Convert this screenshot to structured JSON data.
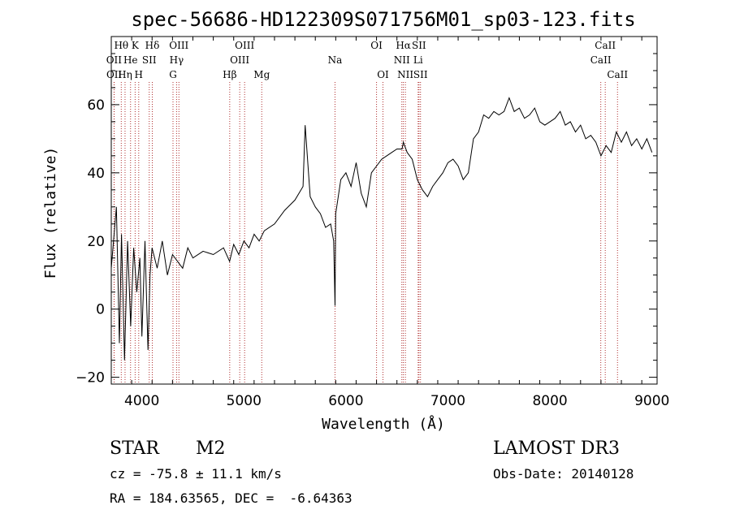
{
  "chart_data": {
    "type": "line",
    "title": "spec-56686-HD122309S071756M01_sp03-123.fits",
    "xlabel": "Wavelength (Å)",
    "ylabel": "Flux (relative)",
    "xlim": [
      3700,
      9050
    ],
    "ylim": [
      -22,
      80
    ],
    "xticks": [
      4000,
      5000,
      6000,
      7000,
      8000,
      9000
    ],
    "yticks": [
      -20,
      0,
      20,
      40,
      60
    ],
    "series": [
      {
        "name": "spectrum",
        "x": [
          3700,
          3750,
          3780,
          3800,
          3830,
          3860,
          3890,
          3920,
          3950,
          3980,
          4000,
          4030,
          4060,
          4080,
          4100,
          4150,
          4200,
          4250,
          4300,
          4350,
          4400,
          4450,
          4500,
          4600,
          4700,
          4800,
          4860,
          4900,
          4950,
          5000,
          5050,
          5100,
          5150,
          5200,
          5300,
          5400,
          5500,
          5580,
          5600,
          5650,
          5700,
          5750,
          5800,
          5850,
          5880,
          5893,
          5900,
          5950,
          6000,
          6050,
          6100,
          6150,
          6200,
          6250,
          6300,
          6350,
          6400,
          6450,
          6500,
          6550,
          6563,
          6600,
          6650,
          6700,
          6750,
          6800,
          6850,
          6900,
          6950,
          7000,
          7050,
          7100,
          7150,
          7200,
          7250,
          7300,
          7350,
          7400,
          7450,
          7500,
          7550,
          7600,
          7650,
          7700,
          7750,
          7800,
          7850,
          7900,
          7950,
          8000,
          8050,
          8100,
          8150,
          8200,
          8250,
          8300,
          8350,
          8400,
          8450,
          8500,
          8550,
          8600,
          8650,
          8700,
          8750,
          8800,
          8850,
          8900,
          8950,
          9000
        ],
        "y": [
          12,
          30,
          -10,
          22,
          -15,
          20,
          -5,
          18,
          5,
          15,
          -8,
          20,
          -12,
          10,
          18,
          12,
          20,
          10,
          16,
          14,
          12,
          18,
          15,
          17,
          16,
          18,
          14,
          19,
          16,
          20,
          18,
          22,
          20,
          23,
          25,
          29,
          32,
          36,
          54,
          33,
          30,
          28,
          24,
          25,
          20,
          1,
          28,
          38,
          40,
          36,
          43,
          34,
          30,
          40,
          42,
          44,
          45,
          46,
          47,
          47,
          49,
          46,
          44,
          38,
          35,
          33,
          36,
          38,
          40,
          43,
          44,
          42,
          38,
          40,
          50,
          52,
          57,
          56,
          58,
          57,
          58,
          62,
          58,
          59,
          56,
          57,
          59,
          55,
          54,
          55,
          56,
          58,
          54,
          55,
          52,
          54,
          50,
          51,
          49,
          45,
          48,
          46,
          52,
          49,
          52,
          48,
          50,
          47,
          50,
          46
        ]
      }
    ],
    "lines": [
      {
        "label": "Hθ",
        "x": 3798,
        "row": 0,
        "color": "#b03030"
      },
      {
        "label": "OII",
        "x": 3727,
        "row": 1,
        "color": "#b03030"
      },
      {
        "label": "OII",
        "x": 3729,
        "row": 2,
        "color": "#b03030"
      },
      {
        "label": "He",
        "x": 3889,
        "row": 1,
        "color": "#b03030"
      },
      {
        "label": "Hη",
        "x": 3835,
        "row": 2,
        "color": "#b03030"
      },
      {
        "label": "K",
        "x": 3934,
        "row": 0,
        "color": "#b03030"
      },
      {
        "label": "H",
        "x": 3969,
        "row": 2,
        "color": "#b03030"
      },
      {
        "label": "SII",
        "x": 4072,
        "row": 1,
        "color": "#b03030"
      },
      {
        "label": "Hδ",
        "x": 4102,
        "row": 0,
        "color": "#b03030"
      },
      {
        "label": "OIII",
        "x": 4363,
        "row": 0,
        "color": "#b03030"
      },
      {
        "label": "Hγ",
        "x": 4340,
        "row": 1,
        "color": "#b03030"
      },
      {
        "label": "G",
        "x": 4305,
        "row": 2,
        "color": "#b03030"
      },
      {
        "label": "Hβ",
        "x": 4861,
        "row": 2,
        "color": "#b03030"
      },
      {
        "label": "OIII",
        "x": 5007,
        "row": 0,
        "color": "#b03030"
      },
      {
        "label": "OIII",
        "x": 4959,
        "row": 1,
        "color": "#b03030"
      },
      {
        "label": "Mg",
        "x": 5175,
        "row": 2,
        "color": "#b03030"
      },
      {
        "label": "Na",
        "x": 5893,
        "row": 1,
        "color": "#b03030"
      },
      {
        "label": "OI",
        "x": 6300,
        "row": 0,
        "color": "#b03030"
      },
      {
        "label": "OI",
        "x": 6363,
        "row": 2,
        "color": "#b03030"
      },
      {
        "label": "Hα",
        "x": 6563,
        "row": 0,
        "color": "#b03030"
      },
      {
        "label": "NII",
        "x": 6548,
        "row": 1,
        "color": "#b03030"
      },
      {
        "label": "NII",
        "x": 6583,
        "row": 2,
        "color": "#b03030"
      },
      {
        "label": "SII",
        "x": 6716,
        "row": 0,
        "color": "#b03030"
      },
      {
        "label": "Li",
        "x": 6708,
        "row": 1,
        "color": "#b03030"
      },
      {
        "label": "SII",
        "x": 6731,
        "row": 2,
        "color": "#b03030"
      },
      {
        "label": "CaII",
        "x": 8542,
        "row": 0,
        "color": "#b03030"
      },
      {
        "label": "CaII",
        "x": 8498,
        "row": 1,
        "color": "#b03030"
      },
      {
        "label": "CaII",
        "x": 8662,
        "row": 2,
        "color": "#b03030"
      }
    ]
  },
  "info": {
    "class": "STAR",
    "subclass": "M2",
    "cz": "cz = -75.8 ± 11.1 km/s",
    "radec": "RA = 184.63565, DEC =  -6.64363",
    "survey": "LAMOST DR3",
    "obsdate": "Obs-Date: 20140128"
  },
  "colors": {
    "line_marker": "#b03030",
    "spectrum": "#000000"
  }
}
